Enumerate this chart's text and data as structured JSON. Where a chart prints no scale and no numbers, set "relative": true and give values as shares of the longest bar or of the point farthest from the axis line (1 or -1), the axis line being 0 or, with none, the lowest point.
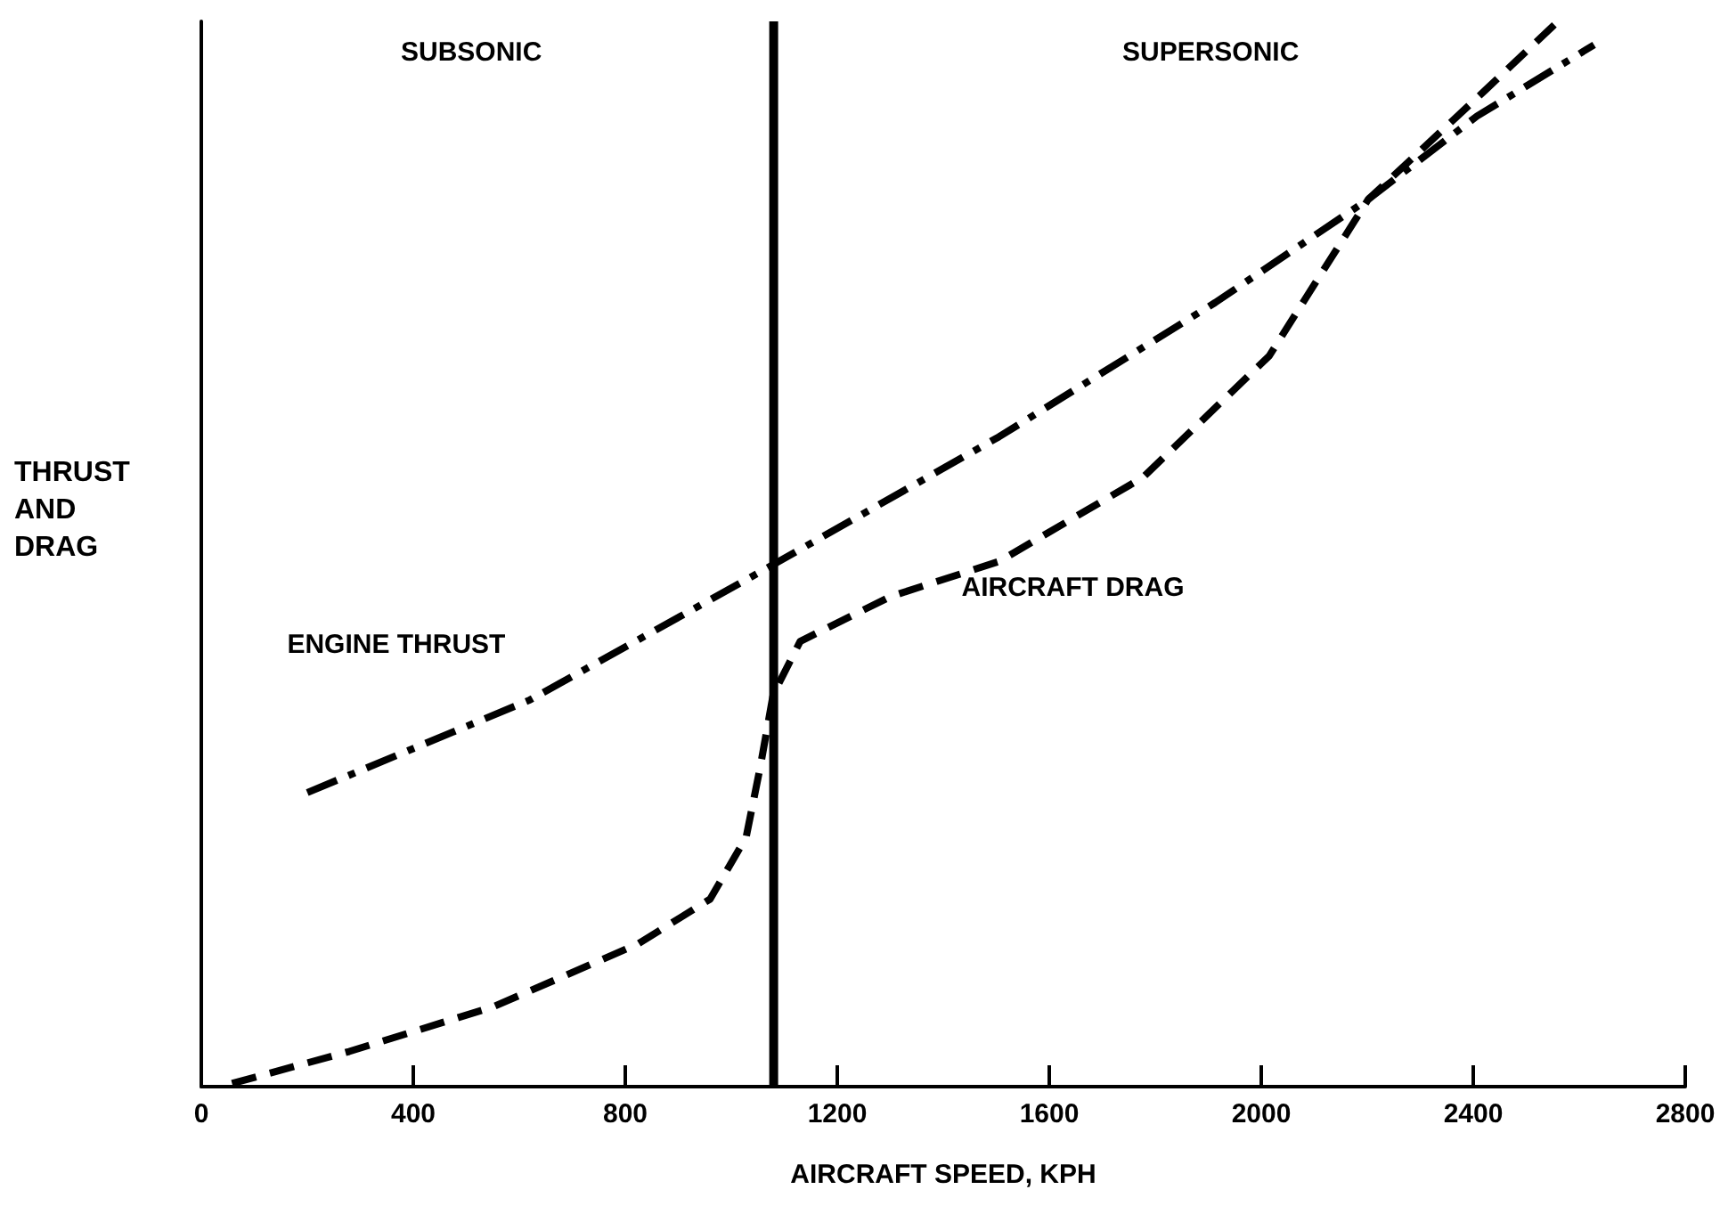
{
  "chart_data": {
    "type": "line",
    "relative": true,
    "xlabel": "AIRCRAFT SPEED, KPH",
    "ylabel": "THRUST AND DRAG",
    "xlim": [
      0,
      2800
    ],
    "xticks": [
      0,
      400,
      800,
      1200,
      1600,
      2000,
      2400,
      2800
    ],
    "grid": false,
    "legend": false,
    "marker": "none",
    "annotations": [
      "SUBSONIC",
      "SUPERSONIC"
    ],
    "ref_lines": [
      {
        "axis": "x",
        "value": 1080,
        "color": "#000000",
        "line_style": "solid"
      }
    ],
    "series": [
      {
        "name": "ENGINE THRUST",
        "color": "#000000",
        "line_style": "dashdot",
        "x": [
          200,
          620,
          1072,
          1505,
          1913,
          2202,
          2407,
          2628
        ],
        "values": [
          0.276,
          0.363,
          0.488,
          0.61,
          0.736,
          0.833,
          0.911,
          0.978
        ]
      },
      {
        "name": "AIRCRAFT DRAG",
        "color": "#000000",
        "line_style": "dashed",
        "x": [
          58,
          279,
          551,
          824,
          960,
          1028,
          1055,
          1079,
          1130,
          1300,
          1505,
          1777,
          2015,
          2202,
          2424,
          2560
        ],
        "values": [
          0.003,
          0.033,
          0.075,
          0.134,
          0.176,
          0.234,
          0.301,
          0.368,
          0.418,
          0.46,
          0.493,
          0.572,
          0.686,
          0.833,
          0.936,
          1.0
        ]
      }
    ]
  }
}
